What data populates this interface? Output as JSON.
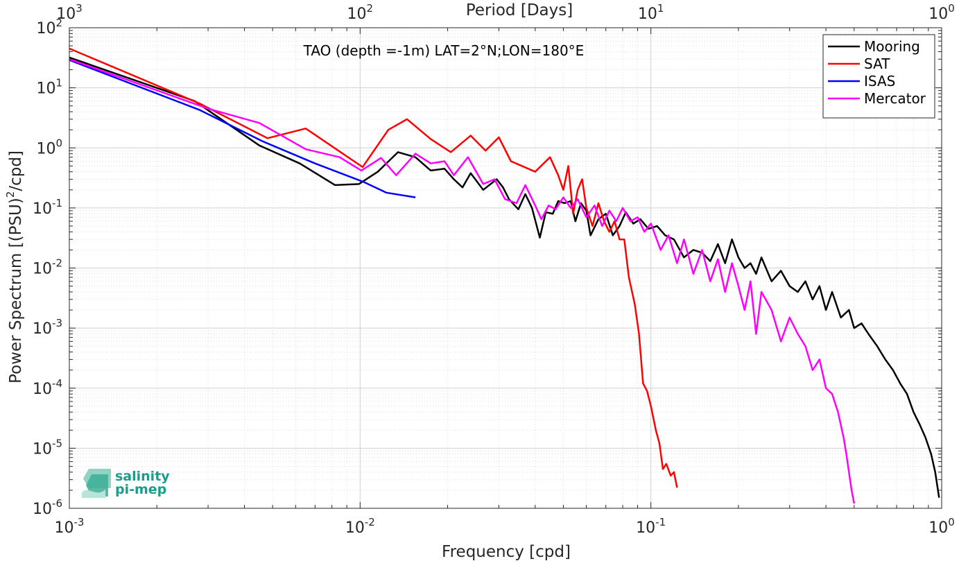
{
  "chart_data": {
    "type": "line",
    "title": "TAO (depth =-1m) LAT=2°N;LON=180°E",
    "xlabel": "Frequency [cpd]",
    "ylabel_main": "Power Spectrum [(PSU)",
    "ylabel_sup": "2",
    "ylabel_tail": "/cpd]",
    "top_axis_label": "Period [Days]",
    "xscale": "log",
    "yscale": "log",
    "xlim": [
      0.001,
      1
    ],
    "ylim": [
      1e-06,
      100
    ],
    "grid": true,
    "legend_position": "top-right",
    "x_ticks": [
      {
        "value": 0.001,
        "base": "10",
        "exp": "-3"
      },
      {
        "value": 0.01,
        "base": "10",
        "exp": "-2"
      },
      {
        "value": 0.1,
        "base": "10",
        "exp": "-1"
      },
      {
        "value": 1,
        "base": "10",
        "exp": "0"
      }
    ],
    "top_ticks": [
      {
        "value": 0.001,
        "base": "10",
        "exp": "3"
      },
      {
        "value": 0.01,
        "base": "10",
        "exp": "2"
      },
      {
        "value": 0.1,
        "base": "10",
        "exp": "1"
      },
      {
        "value": 1,
        "base": "10",
        "exp": "0"
      }
    ],
    "y_ticks": [
      {
        "value": 100,
        "base": "10",
        "exp": "2"
      },
      {
        "value": 10,
        "base": "10",
        "exp": "1"
      },
      {
        "value": 1,
        "base": "10",
        "exp": "0"
      },
      {
        "value": 0.1,
        "base": "10",
        "exp": "-1"
      },
      {
        "value": 0.01,
        "base": "10",
        "exp": "-2"
      },
      {
        "value": 0.001,
        "base": "10",
        "exp": "-3"
      },
      {
        "value": 0.0001,
        "base": "10",
        "exp": "-4"
      },
      {
        "value": 1e-05,
        "base": "10",
        "exp": "-5"
      },
      {
        "value": 1e-06,
        "base": "10",
        "exp": "-6"
      }
    ],
    "series": [
      {
        "name": "Mooring",
        "color": "#000000",
        "points": [
          [
            0.001,
            32
          ],
          [
            0.0027,
            6
          ],
          [
            0.0045,
            1.1
          ],
          [
            0.0062,
            0.55
          ],
          [
            0.0082,
            0.24
          ],
          [
            0.0099,
            0.25
          ],
          [
            0.0115,
            0.4
          ],
          [
            0.0135,
            0.85
          ],
          [
            0.0155,
            0.7
          ],
          [
            0.0175,
            0.42
          ],
          [
            0.0195,
            0.45
          ],
          [
            0.021,
            0.3
          ],
          [
            0.0225,
            0.22
          ],
          [
            0.024,
            0.38
          ],
          [
            0.0265,
            0.2
          ],
          [
            0.0295,
            0.3
          ],
          [
            0.031,
            0.22
          ],
          [
            0.0325,
            0.14
          ],
          [
            0.035,
            0.095
          ],
          [
            0.037,
            0.17
          ],
          [
            0.039,
            0.1
          ],
          [
            0.0415,
            0.032
          ],
          [
            0.0435,
            0.085
          ],
          [
            0.046,
            0.08
          ],
          [
            0.048,
            0.13
          ],
          [
            0.0505,
            0.12
          ],
          [
            0.053,
            0.13
          ],
          [
            0.055,
            0.06
          ],
          [
            0.0575,
            0.12
          ],
          [
            0.06,
            0.09
          ],
          [
            0.062,
            0.035
          ],
          [
            0.066,
            0.065
          ],
          [
            0.07,
            0.08
          ],
          [
            0.074,
            0.035
          ],
          [
            0.078,
            0.05
          ],
          [
            0.082,
            0.085
          ],
          [
            0.087,
            0.055
          ],
          [
            0.092,
            0.065
          ],
          [
            0.098,
            0.045
          ],
          [
            0.105,
            0.05
          ],
          [
            0.112,
            0.035
          ],
          [
            0.12,
            0.03
          ],
          [
            0.13,
            0.015
          ],
          [
            0.14,
            0.02
          ],
          [
            0.15,
            0.018
          ],
          [
            0.16,
            0.013
          ],
          [
            0.17,
            0.025
          ],
          [
            0.18,
            0.012
          ],
          [
            0.19,
            0.03
          ],
          [
            0.2,
            0.015
          ],
          [
            0.21,
            0.01
          ],
          [
            0.22,
            0.012
          ],
          [
            0.23,
            0.008
          ],
          [
            0.24,
            0.015
          ],
          [
            0.26,
            0.006
          ],
          [
            0.28,
            0.009
          ],
          [
            0.3,
            0.005
          ],
          [
            0.32,
            0.004
          ],
          [
            0.34,
            0.006
          ],
          [
            0.36,
            0.003
          ],
          [
            0.38,
            0.005
          ],
          [
            0.4,
            0.002
          ],
          [
            0.42,
            0.004
          ],
          [
            0.45,
            0.0015
          ],
          [
            0.48,
            0.002
          ],
          [
            0.5,
            0.001
          ],
          [
            0.53,
            0.0012
          ],
          [
            0.56,
            0.0008
          ],
          [
            0.6,
            0.0005
          ],
          [
            0.64,
            0.0003
          ],
          [
            0.68,
            0.0002
          ],
          [
            0.72,
            0.00012
          ],
          [
            0.76,
            8e-05
          ],
          [
            0.8,
            4e-05
          ],
          [
            0.84,
            2.5e-05
          ],
          [
            0.88,
            1.5e-05
          ],
          [
            0.92,
            8e-06
          ],
          [
            0.95,
            4e-06
          ],
          [
            0.98,
            1.5e-06
          ]
        ]
      },
      {
        "name": "SAT",
        "color": "#ff0000",
        "points": [
          [
            0.001,
            45
          ],
          [
            0.0028,
            5.5
          ],
          [
            0.0048,
            1.45
          ],
          [
            0.0065,
            2.1
          ],
          [
            0.0102,
            0.48
          ],
          [
            0.0125,
            2.0
          ],
          [
            0.0145,
            3.0
          ],
          [
            0.0175,
            1.4
          ],
          [
            0.0205,
            0.85
          ],
          [
            0.024,
            1.6
          ],
          [
            0.027,
            0.9
          ],
          [
            0.03,
            1.5
          ],
          [
            0.033,
            0.6
          ],
          [
            0.036,
            0.5
          ],
          [
            0.04,
            0.4
          ],
          [
            0.045,
            0.7
          ],
          [
            0.048,
            0.35
          ],
          [
            0.05,
            0.2
          ],
          [
            0.052,
            0.5
          ],
          [
            0.054,
            0.08
          ],
          [
            0.056,
            0.2
          ],
          [
            0.058,
            0.3
          ],
          [
            0.06,
            0.1
          ],
          [
            0.063,
            0.05
          ],
          [
            0.066,
            0.12
          ],
          [
            0.069,
            0.06
          ],
          [
            0.072,
            0.04
          ],
          [
            0.075,
            0.06
          ],
          [
            0.078,
            0.03
          ],
          [
            0.081,
            0.03
          ],
          [
            0.084,
            0.007
          ],
          [
            0.088,
            0.0025
          ],
          [
            0.091,
            0.0008
          ],
          [
            0.094,
            0.00012
          ],
          [
            0.097,
            9e-05
          ],
          [
            0.1,
            5e-05
          ],
          [
            0.104,
            2e-05
          ],
          [
            0.107,
            1.2e-05
          ],
          [
            0.11,
            4.5e-06
          ],
          [
            0.113,
            5.5e-06
          ],
          [
            0.117,
            3.5e-06
          ],
          [
            0.12,
            4e-06
          ],
          [
            0.123,
            2.2e-06
          ]
        ]
      },
      {
        "name": "ISAS",
        "color": "#0000ff",
        "points": [
          [
            0.001,
            29
          ],
          [
            0.0028,
            4.3
          ],
          [
            0.0046,
            1.3
          ],
          [
            0.007,
            0.55
          ],
          [
            0.0103,
            0.27
          ],
          [
            0.0123,
            0.18
          ],
          [
            0.0155,
            0.15
          ]
        ]
      },
      {
        "name": "Mercator",
        "color": "#ff00ff",
        "points": [
          [
            0.001,
            30
          ],
          [
            0.003,
            4.5
          ],
          [
            0.0045,
            2.6
          ],
          [
            0.0065,
            0.95
          ],
          [
            0.0085,
            0.7
          ],
          [
            0.0101,
            0.42
          ],
          [
            0.0118,
            0.68
          ],
          [
            0.0133,
            0.35
          ],
          [
            0.0155,
            0.8
          ],
          [
            0.0175,
            0.55
          ],
          [
            0.0195,
            0.6
          ],
          [
            0.021,
            0.35
          ],
          [
            0.0235,
            0.7
          ],
          [
            0.0265,
            0.25
          ],
          [
            0.029,
            0.3
          ],
          [
            0.0315,
            0.14
          ],
          [
            0.0345,
            0.12
          ],
          [
            0.037,
            0.24
          ],
          [
            0.04,
            0.11
          ],
          [
            0.042,
            0.065
          ],
          [
            0.0445,
            0.11
          ],
          [
            0.047,
            0.095
          ],
          [
            0.05,
            0.15
          ],
          [
            0.053,
            0.1
          ],
          [
            0.056,
            0.14
          ],
          [
            0.06,
            0.07
          ],
          [
            0.064,
            0.11
          ],
          [
            0.068,
            0.05
          ],
          [
            0.072,
            0.09
          ],
          [
            0.076,
            0.06
          ],
          [
            0.08,
            0.1
          ],
          [
            0.085,
            0.06
          ],
          [
            0.09,
            0.07
          ],
          [
            0.095,
            0.04
          ],
          [
            0.1,
            0.055
          ],
          [
            0.108,
            0.02
          ],
          [
            0.115,
            0.035
          ],
          [
            0.123,
            0.012
          ],
          [
            0.13,
            0.03
          ],
          [
            0.14,
            0.008
          ],
          [
            0.15,
            0.02
          ],
          [
            0.16,
            0.006
          ],
          [
            0.17,
            0.014
          ],
          [
            0.18,
            0.004
          ],
          [
            0.19,
            0.012
          ],
          [
            0.2,
            0.005
          ],
          [
            0.21,
            0.002
          ],
          [
            0.22,
            0.006
          ],
          [
            0.23,
            0.0008
          ],
          [
            0.24,
            0.004
          ],
          [
            0.26,
            0.002
          ],
          [
            0.28,
            0.0006
          ],
          [
            0.3,
            0.0015
          ],
          [
            0.32,
            0.0008
          ],
          [
            0.34,
            0.0005
          ],
          [
            0.36,
            0.0002
          ],
          [
            0.38,
            0.0003
          ],
          [
            0.4,
            0.0001
          ],
          [
            0.42,
            8e-05
          ],
          [
            0.44,
            4e-05
          ],
          [
            0.46,
            1.5e-05
          ],
          [
            0.47,
            8e-06
          ],
          [
            0.48,
            4e-06
          ],
          [
            0.49,
            2e-06
          ],
          [
            0.5,
            1.2e-06
          ]
        ]
      }
    ]
  },
  "logo": {
    "line1": "salinity",
    "line2": "pi-mep",
    "color": "#1a9e8a"
  }
}
